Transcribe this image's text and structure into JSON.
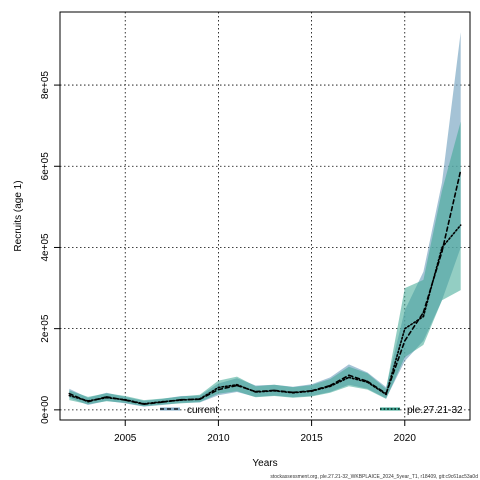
{
  "chart_data": {
    "type": "line",
    "xlabel": "Years",
    "ylabel": "Recruits (age 1)",
    "xlim": [
      2001.5,
      2023.5
    ],
    "ylim": [
      -25000,
      980000
    ],
    "x_ticks": [
      2005,
      2010,
      2015,
      2020
    ],
    "x_tick_labels": [
      "2005",
      "2010",
      "2015",
      "2020"
    ],
    "y_ticks": [
      0,
      200000,
      400000,
      600000,
      800000
    ],
    "y_tick_labels": [
      "0e+00",
      "2e+05",
      "4e+05",
      "6e+05",
      "8e+05"
    ],
    "grid": true,
    "legend_position": "bottom",
    "x": [
      2002,
      2003,
      2004,
      2005,
      2006,
      2007,
      2008,
      2009,
      2010,
      2011,
      2012,
      2013,
      2014,
      2015,
      2016,
      2017,
      2018,
      2019,
      2020,
      2021,
      2022,
      2023
    ],
    "series": [
      {
        "name": "current",
        "color": "#2b8cbe",
        "band_color": "#7fa9c4",
        "line_style": "dashed",
        "values": [
          40000,
          20000,
          32000,
          24000,
          14000,
          19000,
          25000,
          26000,
          50000,
          60000,
          45000,
          48000,
          43000,
          47000,
          60000,
          85000,
          70000,
          40000,
          170000,
          240000,
          390000,
          590000
        ],
        "lower": [
          30000,
          12000,
          22000,
          16000,
          8000,
          12000,
          17000,
          18000,
          36000,
          44000,
          32000,
          35000,
          31000,
          34000,
          44000,
          62000,
          52000,
          28000,
          120000,
          170000,
          270000,
          400000
        ],
        "upper": [
          52000,
          30000,
          42000,
          32000,
          22000,
          27000,
          34000,
          35000,
          65000,
          78000,
          60000,
          62000,
          57000,
          63000,
          80000,
          112000,
          92000,
          56000,
          245000,
          340000,
          560000,
          930000
        ]
      },
      {
        "name": "ple.27.21-32",
        "color": "#1d6b63",
        "band_color": "#3aa592",
        "line_style": "dotted",
        "values": [
          35000,
          22000,
          30000,
          25000,
          15000,
          20000,
          24000,
          27000,
          55000,
          62000,
          44000,
          47000,
          42000,
          46000,
          58000,
          80000,
          68000,
          38000,
          200000,
          230000,
          400000,
          455000
        ],
        "lower": [
          24000,
          14000,
          21000,
          17000,
          9000,
          13000,
          16000,
          19000,
          40000,
          46000,
          31000,
          34000,
          30000,
          33000,
          42000,
          58000,
          50000,
          27000,
          130000,
          160000,
          270000,
          295000
        ],
        "upper": [
          48000,
          32000,
          41000,
          34000,
          24000,
          28000,
          33000,
          37000,
          72000,
          82000,
          58000,
          62000,
          56000,
          61000,
          76000,
          106000,
          90000,
          52000,
          300000,
          320000,
          540000,
          710000
        ]
      }
    ]
  },
  "footer": "stockassessment.org, ple.27.21-32_WKBPLAICE_2024_5year_T1, r18409, git:c9c61ac53a0d"
}
